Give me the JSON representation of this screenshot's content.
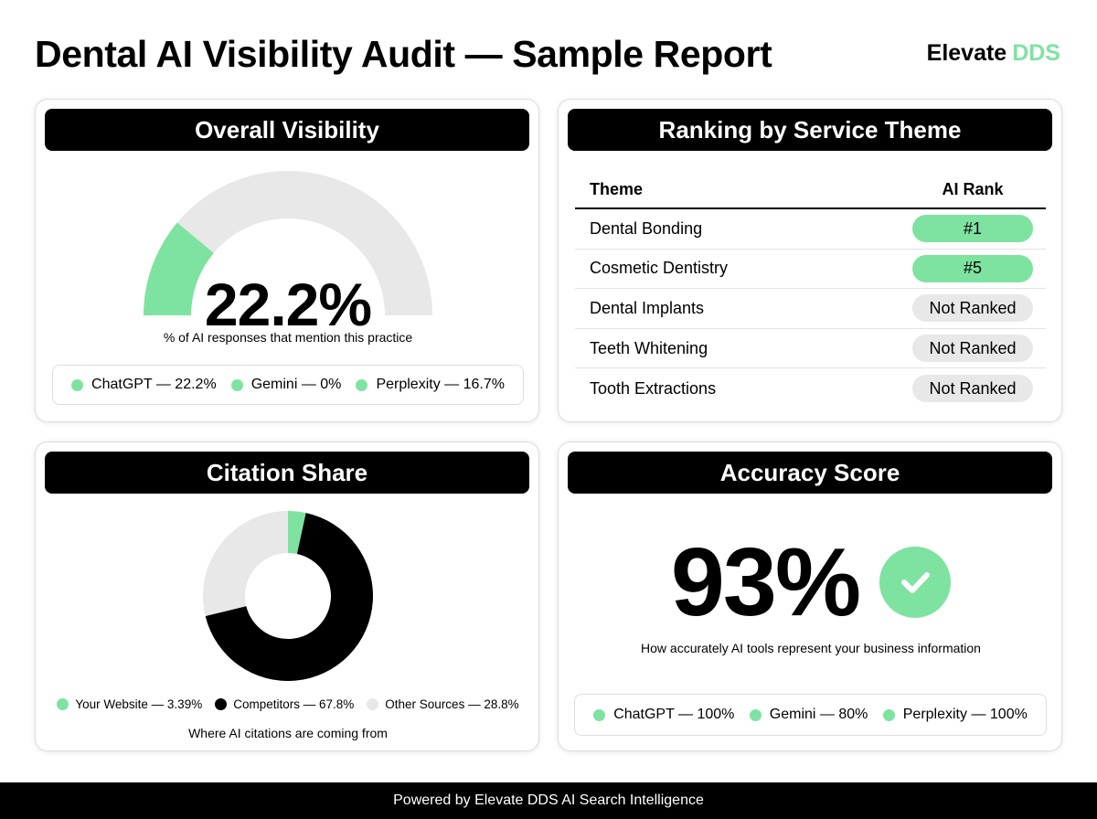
{
  "header": {
    "title": "Dental AI Visibility Audit — Sample Report",
    "brand_main": "Elevate",
    "brand_accent": "DDS"
  },
  "colors": {
    "accent_green": "#7ee3a0",
    "black": "#000000",
    "light_gray": "#e8e8e8"
  },
  "visibility": {
    "title": "Overall Visibility",
    "value": "22.2%",
    "percent": 22.2,
    "caption": "% of AI responses that mention this practice",
    "legend": [
      "ChatGPT — 22.2%",
      "Gemini — 0%",
      "Perplexity — 16.7%"
    ]
  },
  "ranking": {
    "title": "Ranking by Service Theme",
    "col_theme": "Theme",
    "col_rank": "AI Rank",
    "rows": [
      {
        "theme": "Dental Bonding",
        "rank": "#1",
        "ranked": true
      },
      {
        "theme": "Cosmetic Dentistry",
        "rank": "#5",
        "ranked": true
      },
      {
        "theme": "Dental Implants",
        "rank": "Not Ranked",
        "ranked": false
      },
      {
        "theme": "Teeth Whitening",
        "rank": "Not Ranked",
        "ranked": false
      },
      {
        "theme": "Tooth Extractions",
        "rank": "Not Ranked",
        "ranked": false
      }
    ]
  },
  "citation": {
    "title": "Citation Share",
    "legend": [
      "Your Website — 3.39%",
      "Competitors — 67.8%",
      "Other Sources — 28.8%"
    ],
    "caption": "Where AI citations are coming from"
  },
  "accuracy": {
    "title": "Accuracy Score",
    "value": "93%",
    "caption": "How accurately AI tools represent your business information",
    "legend": [
      "ChatGPT — 100%",
      "Gemini — 80%",
      "Perplexity — 100%"
    ]
  },
  "footer": {
    "text": "Powered by Elevate DDS AI Search Intelligence"
  },
  "chart_data": [
    {
      "type": "pie",
      "title": "Citation Share",
      "categories": [
        "Your Website",
        "Competitors",
        "Other Sources"
      ],
      "values": [
        3.39,
        67.8,
        28.8
      ],
      "colors": [
        "#7ee3a0",
        "#000000",
        "#e8e8e8"
      ]
    }
  ]
}
